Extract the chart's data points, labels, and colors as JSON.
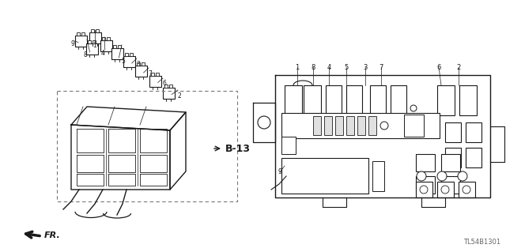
{
  "bg_color": "#ffffff",
  "line_color": "#1a1a1a",
  "dash_color": "#555555",
  "part_number_label": "TL54B1301",
  "b13_label": "B-13",
  "fr_label": "FR.",
  "fig_width": 6.4,
  "fig_height": 3.19,
  "dpi": 100
}
